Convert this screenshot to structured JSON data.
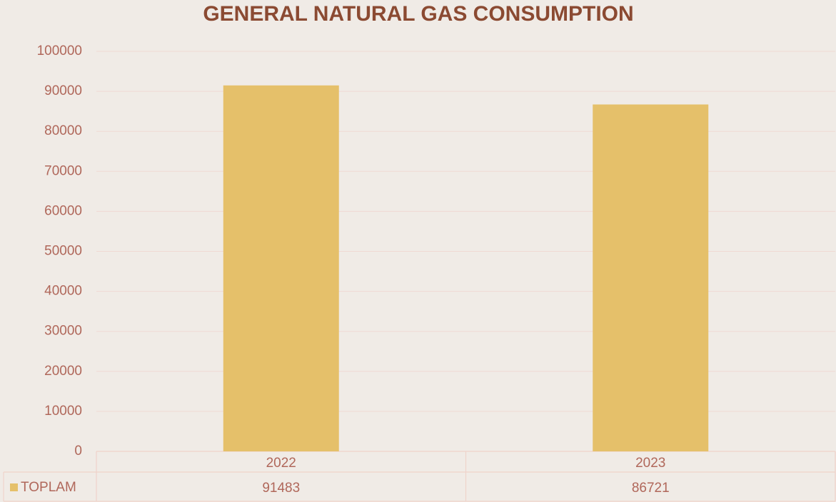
{
  "chart_data": {
    "type": "bar",
    "title": "GENERAL NATURAL GAS CONSUMPTION",
    "categories": [
      "2022",
      "2023"
    ],
    "series": [
      {
        "name": "TOPLAM",
        "color": "#e5c06a",
        "values": [
          91483,
          86721
        ]
      }
    ],
    "ylim": [
      0,
      100000
    ],
    "yticks": [
      0,
      10000,
      20000,
      30000,
      40000,
      50000,
      60000,
      70000,
      80000,
      90000,
      100000
    ],
    "grid": true
  }
}
